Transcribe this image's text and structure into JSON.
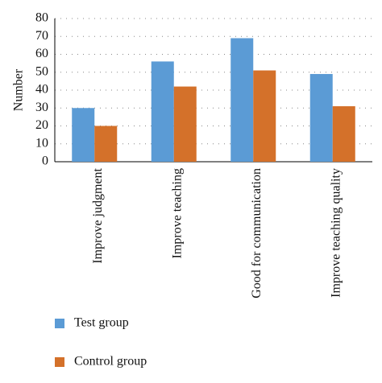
{
  "chart_data": {
    "type": "bar",
    "y_label": "Number",
    "categories": [
      "Improve judgment",
      "Improve teaching",
      "Good for communication",
      "Improve teaching quality"
    ],
    "series": [
      {
        "name": "Test group",
        "color": "#5b9bd5",
        "values": [
          30,
          56,
          69,
          49
        ]
      },
      {
        "name": "Control group",
        "color": "#d4712a",
        "values": [
          20,
          42,
          51,
          31
        ]
      }
    ],
    "ylim": [
      0,
      80
    ],
    "yticks": [
      0,
      10,
      20,
      30,
      40,
      50,
      60,
      70,
      80
    ],
    "grid": true
  }
}
